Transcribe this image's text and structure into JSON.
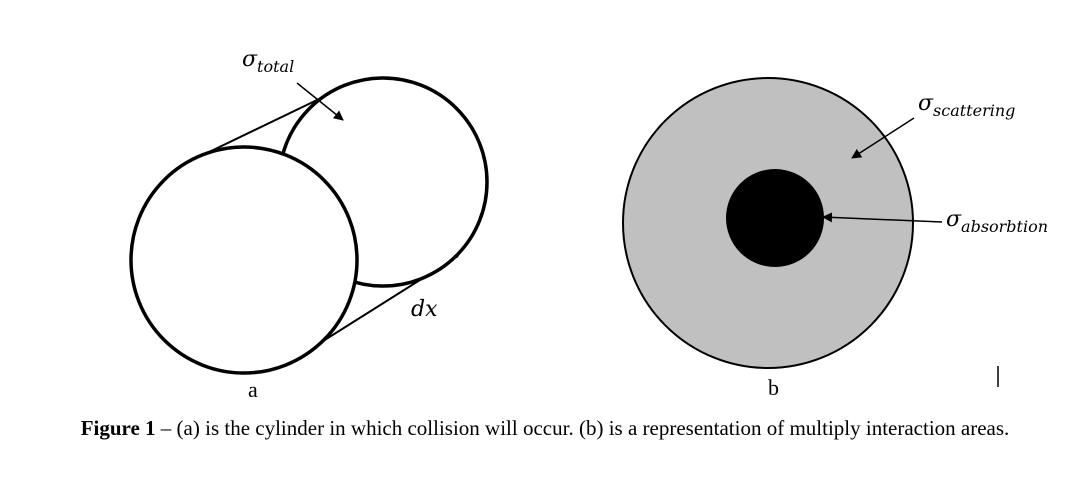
{
  "diagram_a": {
    "label_sigma": "σ",
    "label_sub": "total",
    "label_dx": "dx",
    "panel_label": "a"
  },
  "diagram_b": {
    "scattering_sigma": "σ",
    "scattering_sub": "scattering",
    "absorption_sigma": "σ",
    "absorption_sub": "absorbtion",
    "panel_label": "b",
    "outer_fill": "#c0c0c0",
    "inner_fill": "#000000"
  },
  "caption": {
    "figure_label": "Figure 1",
    "text": " – (a) is the cylinder in which collision will occur. (b) is a representation of multiply interaction areas."
  }
}
